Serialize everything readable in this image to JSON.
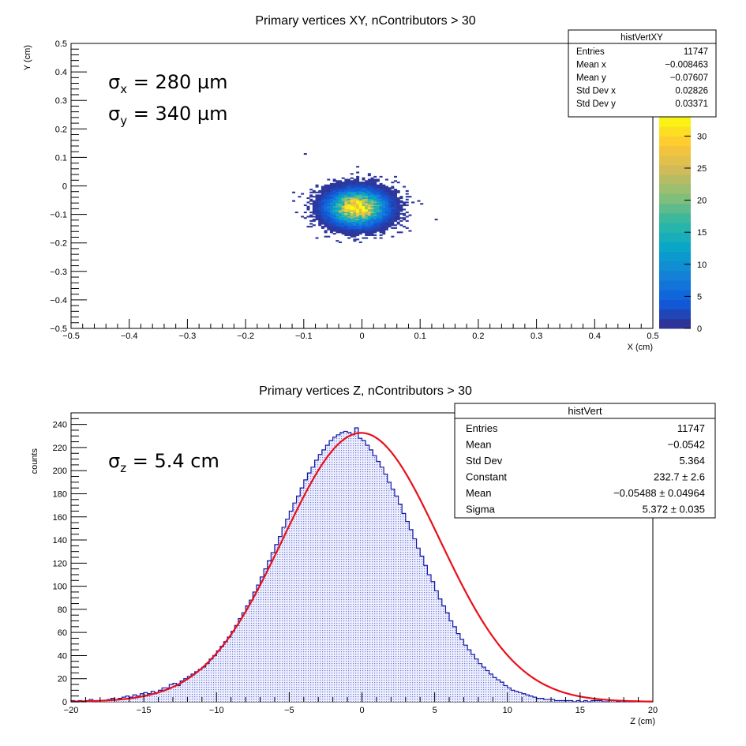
{
  "colors": {
    "fit_line": "#e8101a",
    "hist_outline": "#1418a8",
    "hist_fill": "#c9cdf3",
    "axis": "#000000",
    "palette_low": "#352a87",
    "palette_mid": "#21b0a2",
    "palette_high": "#f9fb0e"
  },
  "chart_data": [
    {
      "type": "heatmap",
      "title": "Primary vertices XY, nContributors > 30",
      "xlabel": "X (cm)",
      "ylabel": "Y (cm)",
      "xlim": [
        -0.5,
        0.5
      ],
      "ylim": [
        -0.5,
        0.5
      ],
      "x_ticks": [
        "−0.5",
        "−0.4",
        "−0.3",
        "−0.2",
        "−0.1",
        "0",
        "0.1",
        "0.2",
        "0.3",
        "0.4",
        "0.5"
      ],
      "y_ticks": [
        "−0.5",
        "−0.4",
        "−0.3",
        "−0.2",
        "−0.1",
        "0",
        "0.1",
        "0.2",
        "0.3",
        "0.4",
        "0.5"
      ],
      "colorbar": {
        "min": 0,
        "max": 33,
        "ticks": [
          "0",
          "5",
          "10",
          "15",
          "20",
          "25",
          "30"
        ]
      },
      "distribution": {
        "center_x": -0.008463,
        "center_y": -0.07607,
        "sigma_x": 0.028,
        "sigma_y": 0.034,
        "peak": 33
      },
      "stats_box": {
        "title": "histVertXY",
        "rows": [
          {
            "label": "Entries",
            "value": "11747"
          },
          {
            "label": "Mean x",
            "value": "−0.008463"
          },
          {
            "label": "Mean y",
            "value": "−0.07607"
          },
          {
            "label": "Std Dev x",
            "value": "0.02826"
          },
          {
            "label": "Std Dev y",
            "value": "0.03371"
          }
        ]
      },
      "annotations": [
        {
          "sym": "σ",
          "sub": "x",
          "text": " = 280 µm"
        },
        {
          "sym": "σ",
          "sub": "y",
          "text": " = 340 µm"
        }
      ]
    },
    {
      "type": "bar",
      "title": "Primary vertices Z, nContributors > 30",
      "xlabel": "Z (cm)",
      "ylabel": "counts",
      "xlim": [
        -20,
        20
      ],
      "ylim": [
        0,
        250
      ],
      "x_ticks": [
        "−20",
        "−15",
        "−10",
        "−5",
        "0",
        "5",
        "10",
        "15",
        "20"
      ],
      "y_ticks": [
        "0",
        "20",
        "40",
        "60",
        "80",
        "100",
        "120",
        "140",
        "160",
        "180",
        "200",
        "220",
        "240"
      ],
      "bin_edges": [
        -20,
        20
      ],
      "values": [
        1,
        0,
        1,
        0,
        1,
        2,
        0,
        1,
        1,
        1,
        2,
        3,
        2,
        3,
        4,
        5,
        4,
        6,
        5,
        7,
        8,
        7,
        9,
        8,
        10,
        12,
        12,
        15,
        16,
        14,
        18,
        20,
        22,
        24,
        26,
        28,
        30,
        33,
        37,
        40,
        44,
        48,
        52,
        56,
        61,
        66,
        72,
        77,
        83,
        88,
        95,
        101,
        108,
        115,
        122,
        129,
        136,
        143,
        151,
        158,
        165,
        172,
        178,
        185,
        192,
        198,
        203,
        209,
        214,
        218,
        222,
        226,
        229,
        231,
        233,
        234,
        233,
        231,
        237,
        228,
        226,
        222,
        218,
        213,
        208,
        203,
        197,
        190,
        184,
        178,
        171,
        163,
        156,
        149,
        141,
        133,
        126,
        118,
        110,
        104,
        96,
        89,
        83,
        77,
        70,
        65,
        59,
        54,
        49,
        45,
        41,
        37,
        33,
        30,
        27,
        24,
        21,
        19,
        17,
        14,
        12,
        10,
        9,
        8,
        7,
        6,
        5,
        4,
        3,
        3,
        2,
        2,
        2,
        1,
        1,
        1,
        1,
        1,
        0,
        1,
        0,
        1,
        0,
        1,
        1,
        1,
        0,
        0,
        1,
        1,
        0,
        1,
        0,
        0,
        0,
        0,
        0,
        0,
        0,
        0
      ],
      "fit": {
        "constant": 232.7,
        "mean": -0.05488,
        "sigma": 5.372
      },
      "stats_box": {
        "title": "histVert",
        "rows": [
          {
            "label": "Entries",
            "value": "11747"
          },
          {
            "label": "Mean",
            "value": "−0.0542"
          },
          {
            "label": "Std Dev",
            "value": "5.364"
          },
          {
            "label": "Constant",
            "value": "232.7 ± 2.6"
          },
          {
            "label": "Mean",
            "value": "−0.05488 ± 0.04964"
          },
          {
            "label": "Sigma",
            "value": "5.372 ± 0.035"
          }
        ]
      },
      "annotations": [
        {
          "sym": "σ",
          "sub": "z",
          "text": " = 5.4 cm"
        }
      ]
    }
  ]
}
